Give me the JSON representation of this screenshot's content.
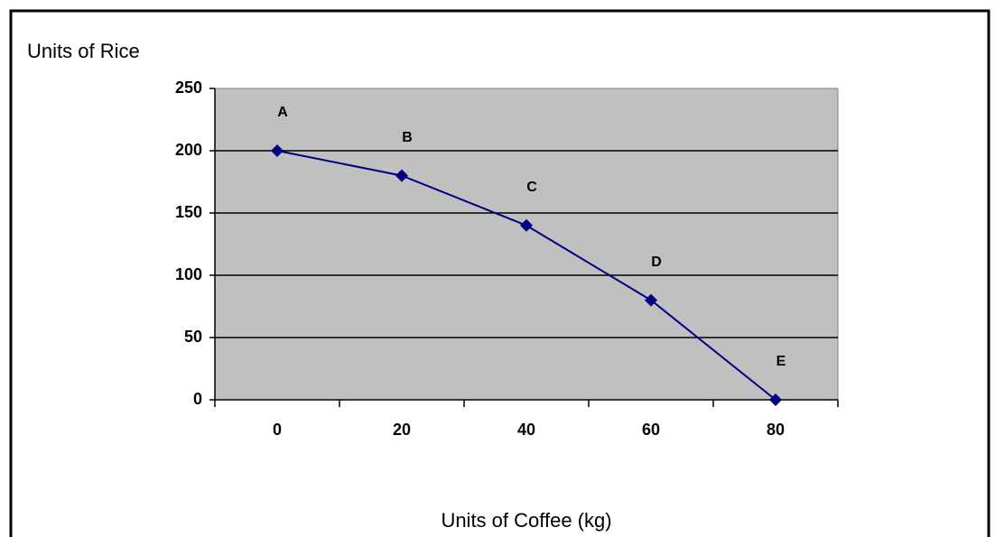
{
  "chart_data": {
    "type": "line",
    "y_axis_title": "Units of Rice",
    "x_axis_title": "Units of Coffee (kg)",
    "categories": [
      "0",
      "20",
      "40",
      "60",
      "80"
    ],
    "series": [
      {
        "color": "#000080",
        "values": [
          200,
          180,
          140,
          80,
          0
        ],
        "point_labels": [
          "A",
          "B",
          "C",
          "D",
          "E"
        ]
      }
    ],
    "ylim": [
      0,
      250
    ],
    "yticks": [
      0,
      50,
      100,
      150,
      200,
      250
    ],
    "grid": true,
    "plot_background": "#c0c0c0"
  }
}
